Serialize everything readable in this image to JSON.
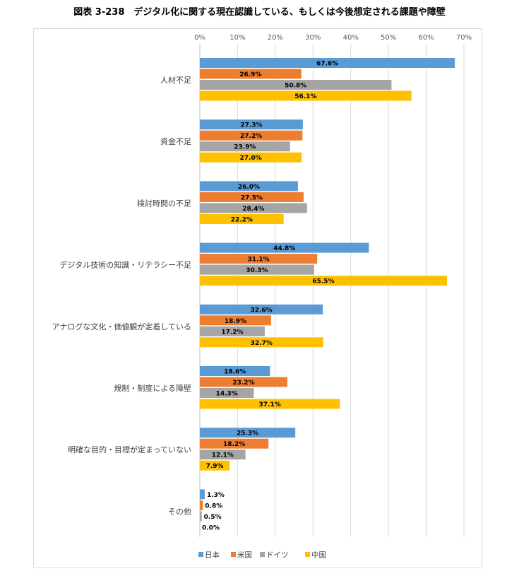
{
  "title": "図表 3-238　デジタル化に関する現在認識している、もしくは今後想定される課題や障壁",
  "colors": {
    "日本": "#5b9bd5",
    "米国": "#ed7d31",
    "ドイツ": "#a5a5a5",
    "中国": "#ffc000"
  },
  "chart_data": {
    "type": "bar",
    "orientation": "horizontal",
    "title": "図表 3-238　デジタル化に関する現在認識している、もしくは今後想定される課題や障壁",
    "categories": [
      "人材不足",
      "資金不足",
      "検討時間の不足",
      "デジタル技術の知識・リテラシー不足",
      "アナログな文化・価値観が定着している",
      "規制・制度による障壁",
      "明確な目的・目標が定まっていない",
      "その他"
    ],
    "series": [
      {
        "name": "日本",
        "values": [
          67.6,
          27.3,
          26.0,
          44.8,
          32.6,
          18.6,
          25.3,
          1.3
        ]
      },
      {
        "name": "米国",
        "values": [
          26.9,
          27.2,
          27.5,
          31.1,
          18.9,
          23.2,
          18.2,
          0.8
        ]
      },
      {
        "name": "ドイツ",
        "values": [
          50.8,
          23.9,
          28.4,
          30.3,
          17.2,
          14.3,
          12.1,
          0.5
        ]
      },
      {
        "name": "中国",
        "values": [
          56.1,
          27.0,
          22.2,
          65.5,
          32.7,
          37.1,
          7.9,
          0.0
        ]
      }
    ],
    "xlim": [
      0,
      70
    ],
    "ticks": [
      0,
      10,
      20,
      30,
      40,
      50,
      60,
      70
    ],
    "tick_labels": [
      "0%",
      "10%",
      "20%",
      "30%",
      "40%",
      "50%",
      "60%",
      "70%"
    ],
    "data_label_suffix": "%",
    "xlabel": "",
    "ylabel": "",
    "grid": "vertical",
    "legend_position": "bottom"
  }
}
